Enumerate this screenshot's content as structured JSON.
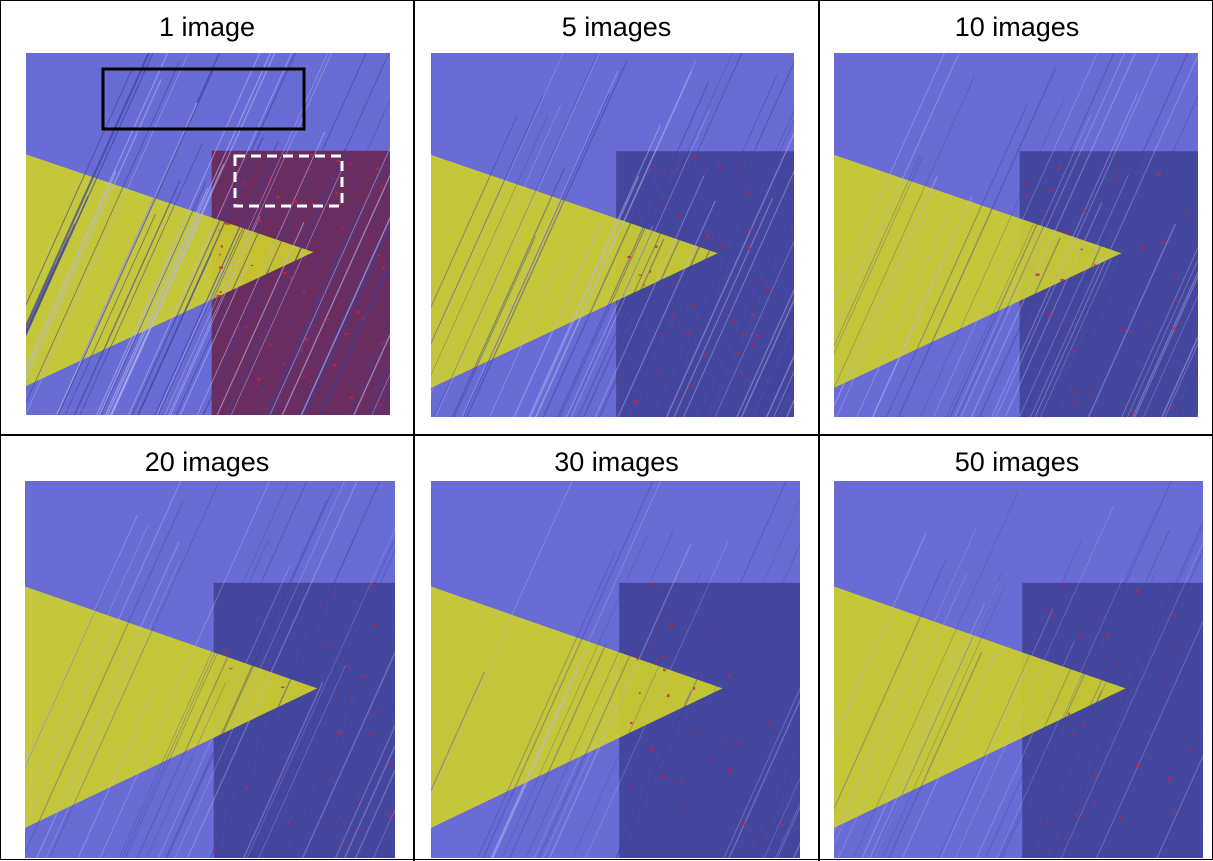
{
  "panels": [
    {
      "title": "1 image"
    },
    {
      "title": "5 images"
    },
    {
      "title": "10 images"
    },
    {
      "title": "20 images"
    },
    {
      "title": "30 images"
    },
    {
      "title": "50 images"
    }
  ],
  "colors": {
    "background_blue": "#6a6cd6",
    "yellow_region": "#cfd12a",
    "dark_region": "#3a3a8a",
    "red_defects": "#d0203a",
    "annotation_black": "#000000",
    "annotation_white": "#ffffff"
  }
}
